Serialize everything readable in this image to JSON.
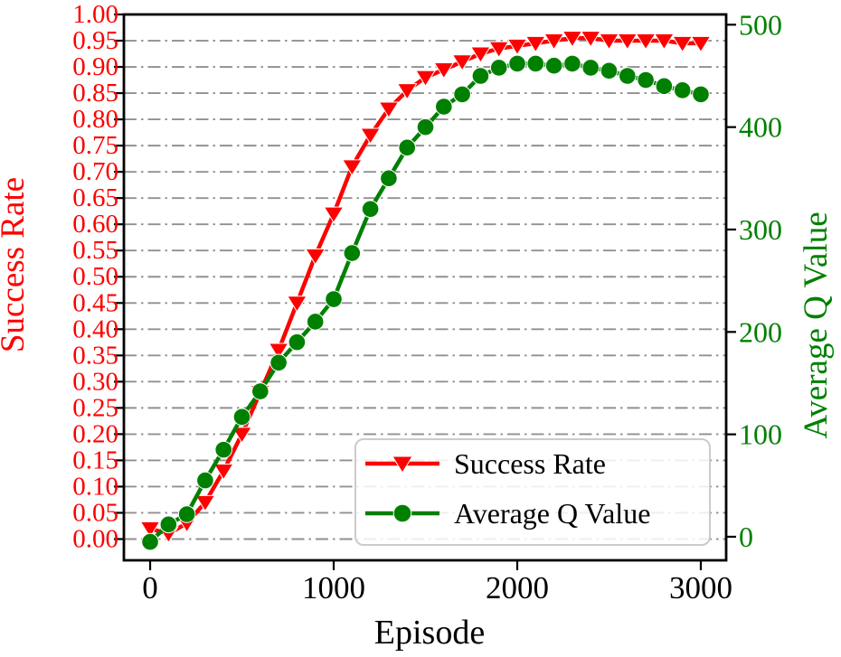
{
  "figure": {
    "background": "#ffffff",
    "frame_color": "#000000",
    "grid_color": "#909090",
    "grid_style": "dash-dot",
    "legend_border_color": "#cbcbcb",
    "legend_fill": "rgba(255,255,255,0.85)",
    "text_color": "#000000"
  },
  "chart_data": {
    "type": "line",
    "title": "",
    "xlabel": "Episode",
    "xlim": [
      -143,
      3138
    ],
    "x_ticks": [
      0,
      1000,
      2000,
      3000
    ],
    "x_tick_labels": [
      "0",
      "1000",
      "2000",
      "3000"
    ],
    "grid": "horizontal dash-dot at left-axis ticks",
    "left_axis": {
      "label": "Success Rate",
      "color": "#fe0000",
      "lim": [
        -0.0405,
        1.0
      ],
      "ticks": [
        0.0,
        0.05,
        0.1,
        0.15,
        0.2,
        0.25,
        0.3,
        0.35,
        0.4,
        0.45,
        0.5,
        0.55,
        0.6,
        0.65,
        0.7,
        0.75,
        0.8,
        0.85,
        0.9,
        0.95,
        1.0
      ],
      "tick_labels": [
        "0.00",
        "0.05",
        "0.10",
        "0.15",
        "0.20",
        "0.25",
        "0.30",
        "0.35",
        "0.40",
        "0.45",
        "0.50",
        "0.55",
        "0.60",
        "0.65",
        "0.70",
        "0.75",
        "0.80",
        "0.85",
        "0.90",
        "0.95",
        "1.00"
      ]
    },
    "right_axis": {
      "label": "Average Q Value",
      "color": "#008000",
      "lim": [
        -23,
        510
      ],
      "ticks": [
        0,
        100,
        200,
        300,
        400,
        500
      ],
      "tick_labels": [
        "0",
        "100",
        "200",
        "300",
        "400",
        "500"
      ]
    },
    "x": [
      0,
      100,
      200,
      300,
      400,
      500,
      600,
      700,
      800,
      900,
      1000,
      1100,
      1200,
      1300,
      1400,
      1500,
      1600,
      1700,
      1800,
      1900,
      2000,
      2100,
      2200,
      2300,
      2400,
      2500,
      2600,
      2700,
      2800,
      2900,
      3000
    ],
    "series": [
      {
        "name": "Success Rate",
        "axis": "left",
        "color": "#fe0000",
        "marker": "triangle-down",
        "line_width": 4.5,
        "values": [
          0.02,
          0.01,
          0.03,
          0.07,
          0.13,
          0.2,
          0.28,
          0.36,
          0.45,
          0.54,
          0.62,
          0.71,
          0.77,
          0.82,
          0.855,
          0.88,
          0.895,
          0.91,
          0.925,
          0.935,
          0.94,
          0.945,
          0.95,
          0.955,
          0.955,
          0.95,
          0.95,
          0.95,
          0.95,
          0.945,
          0.945
        ]
      },
      {
        "name": "Average Q Value",
        "axis": "right",
        "color": "#008000",
        "marker": "circle",
        "line_width": 4.5,
        "values": [
          -5,
          12,
          22,
          55,
          85,
          117,
          142,
          170,
          190,
          210,
          232,
          277,
          320,
          350,
          380,
          400,
          420,
          432,
          450,
          458,
          462,
          462,
          460,
          462,
          458,
          455,
          450,
          446,
          440,
          436,
          432
        ]
      }
    ],
    "legend": {
      "position": "lower-right",
      "entries": [
        "Success Rate",
        "Average Q Value"
      ]
    }
  }
}
